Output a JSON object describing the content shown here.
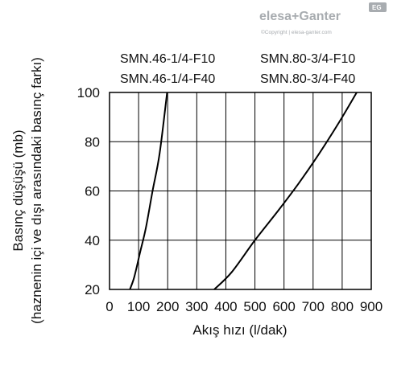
{
  "brand": {
    "logo_text": "elesa+Ganter",
    "badge": "EG",
    "copyright": "©Copyright | elesa-ganter.com",
    "color": "#a8acb0"
  },
  "chart_data": {
    "type": "line",
    "title": "",
    "xlabel": "Akış hızı (l/dak)",
    "ylabel": "Basınç düşüşü (mb)",
    "ylabel2": "(haznenin içi ve dışı arasındaki basınç farkı)",
    "xlim": [
      0,
      900
    ],
    "ylim": [
      20,
      100
    ],
    "xticks": [
      0,
      100,
      200,
      300,
      400,
      500,
      600,
      700,
      800,
      900
    ],
    "yticks": [
      20,
      40,
      60,
      80,
      100
    ],
    "grid": true,
    "line_color": "#000000",
    "series_labels": [
      [
        "SMN.46-1/4-F10",
        "SMN.46-1/4-F40"
      ],
      [
        "SMN.80-3/4-F10",
        "SMN.80-3/4-F40"
      ]
    ],
    "series": [
      {
        "x": [
          70,
          85,
          105,
          125,
          148,
          172,
          198
        ],
        "y": [
          20,
          25,
          35,
          45,
          60,
          75,
          100
        ]
      },
      {
        "x": [
          360,
          420,
          500,
          580,
          650,
          720,
          790,
          850
        ],
        "y": [
          20,
          27,
          40,
          52,
          63,
          75,
          88,
          100
        ]
      }
    ]
  }
}
